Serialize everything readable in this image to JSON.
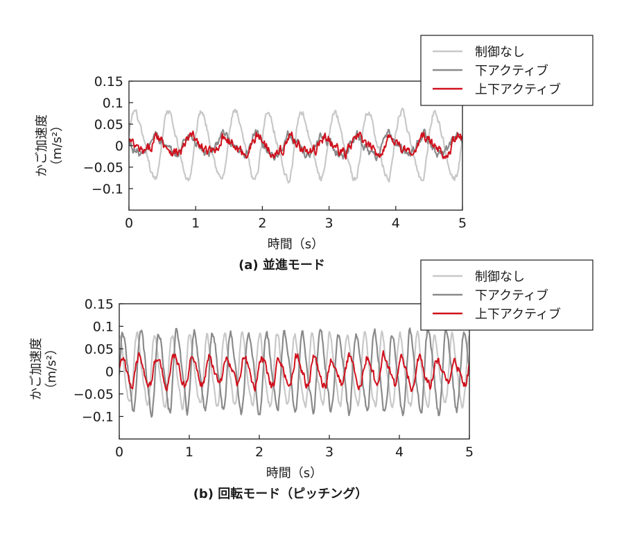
{
  "chart_data": [
    {
      "type": "line",
      "caption": "(a) 並進モード",
      "xlabel": "時間（s）",
      "ylabel": "かご加速度",
      "ylabel_unit": "（m/s²）",
      "xlim": [
        0,
        5
      ],
      "ylim": [
        -0.15,
        0.15
      ],
      "xticks": [
        0,
        1,
        2,
        3,
        4,
        5
      ],
      "yticks": [
        0.15,
        0.1,
        0.05,
        0,
        -0.05,
        -0.1
      ],
      "ytick_labels": [
        "0.15",
        "0.1",
        "0.05",
        "0",
        "−0.05",
        "−0.1"
      ],
      "grid": false,
      "legend_position": "top-right",
      "series": [
        {
          "name": "制御なし",
          "color": "#c8c8c8",
          "amplitude": 0.075,
          "frequency": 2.0,
          "phase": 0.2,
          "noise": 0.006
        },
        {
          "name": "下アクティブ",
          "color": "#8a8a8a",
          "amplitude": 0.022,
          "frequency": 2.0,
          "phase": 2.6,
          "noise": 0.008
        },
        {
          "name": "上下アクティブ",
          "color": "#d0101c",
          "amplitude": 0.018,
          "frequency": 2.0,
          "phase": 2.2,
          "noise": 0.009
        }
      ]
    },
    {
      "type": "line",
      "caption": "(b) 回転モード（ピッチング）",
      "xlabel": "時間（s）",
      "ylabel": "かご加速度",
      "ylabel_unit": "（m/s²）",
      "xlim": [
        0,
        5
      ],
      "ylim": [
        -0.15,
        0.15
      ],
      "xticks": [
        0,
        1,
        2,
        3,
        4,
        5
      ],
      "yticks": [
        0.15,
        0.1,
        0.05,
        0,
        -0.05,
        -0.1
      ],
      "ytick_labels": [
        "0.15",
        "0.1",
        "0.05",
        "0",
        "−0.05",
        "−0.1"
      ],
      "grid": false,
      "legend_position": "top-right",
      "series": [
        {
          "name": "制御なし",
          "color": "#c8c8c8",
          "amplitude": 0.075,
          "frequency": 4.0,
          "phase": 1.2,
          "noise": 0.006
        },
        {
          "name": "下アクティブ",
          "color": "#8a8a8a",
          "amplitude": 0.085,
          "frequency": 3.9,
          "phase": 0.0,
          "noise": 0.008
        },
        {
          "name": "上下アクティブ",
          "color": "#d0101c",
          "amplitude": 0.03,
          "frequency": 4.0,
          "phase": 0.4,
          "noise": 0.008
        }
      ]
    }
  ]
}
